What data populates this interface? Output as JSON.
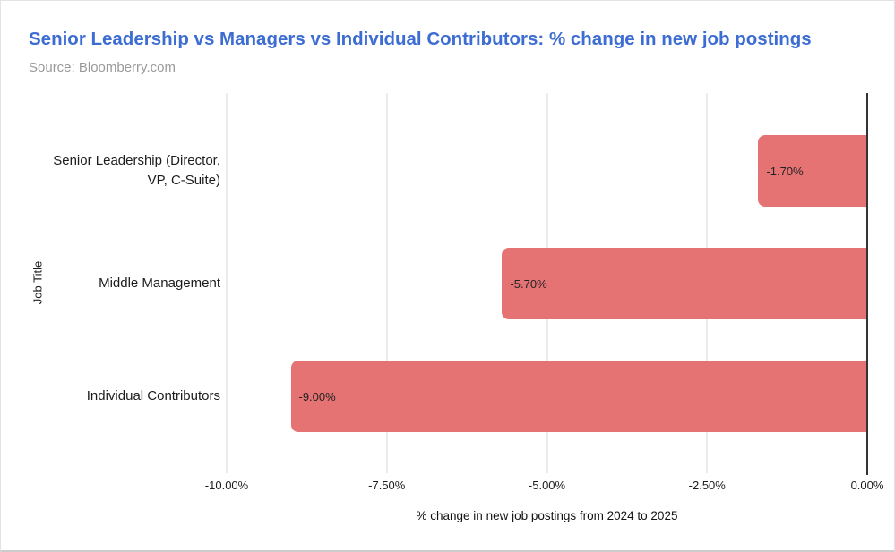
{
  "header": {
    "title": "Senior Leadership vs Managers vs Individual Contributors: % change in new job postings",
    "source": "Source: Bloomberry.com"
  },
  "colors": {
    "title": "#3d6dd2",
    "source": "#9a9a9a",
    "bar": "#e57373",
    "gridline": "#d9d9d9",
    "zero_line": "#333333"
  },
  "chart_data": {
    "type": "bar",
    "orientation": "horizontal",
    "title": "Senior Leadership vs Managers vs Individual Contributors: % change in new job postings",
    "subtitle": "Source: Bloomberry.com",
    "categories": [
      "Senior Leadership (Director,\nVP, C-Suite)",
      "Middle Management",
      "Individual Contributors"
    ],
    "values": [
      -1.7,
      -5.7,
      -9.0
    ],
    "bar_labels": [
      "-1.70%",
      "-5.70%",
      "-9.00%"
    ],
    "xlabel": "% change in new job postings from 2024 to 2025",
    "ylabel": "Job Title",
    "xlim": [
      -10,
      0
    ],
    "xticks": [
      -10,
      -7.5,
      -5,
      -2.5,
      0
    ],
    "xtick_labels": [
      "-10.00%",
      "-7.50%",
      "-5.00%",
      "-2.50%",
      "0.00%"
    ],
    "grid": "vertical-gridlines-only",
    "legend": "none"
  }
}
